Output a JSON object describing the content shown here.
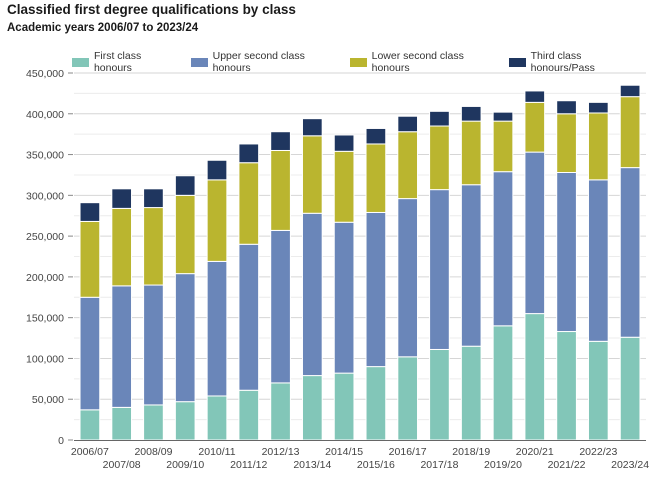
{
  "chart_data": {
    "type": "bar",
    "stacked": true,
    "title": "Classified first degree qualifications by class",
    "subtitle": "Academic years 2006/07 to 2023/24",
    "xlabel": "",
    "ylabel": "",
    "ylim": [
      0,
      450000
    ],
    "yticks": [
      0,
      50000,
      100000,
      150000,
      200000,
      250000,
      300000,
      350000,
      400000,
      450000
    ],
    "ytick_labels": [
      "0",
      "50,000",
      "100,000",
      "150,000",
      "200,000",
      "250,000",
      "300,000",
      "350,000",
      "400,000",
      "450,000"
    ],
    "grid": true,
    "legend_position": "top",
    "categories": [
      "2006/07",
      "2007/08",
      "2008/09",
      "2009/10",
      "2010/11",
      "2011/12",
      "2012/13",
      "2013/14",
      "2014/15",
      "2015/16",
      "2016/17",
      "2017/18",
      "2018/19",
      "2019/20",
      "2020/21",
      "2021/22",
      "2022/23",
      "2023/24"
    ],
    "series": [
      {
        "name": "First class honours",
        "color": "#82c6b8",
        "values": [
          37000,
          40000,
          43000,
          47000,
          54000,
          61000,
          70000,
          79000,
          82000,
          90000,
          102000,
          111000,
          115000,
          140000,
          155000,
          133000,
          121000,
          126000
        ]
      },
      {
        "name": "Upper second class honours",
        "color": "#6a86b9",
        "values": [
          138000,
          149000,
          147000,
          157000,
          165000,
          179000,
          187000,
          199000,
          185000,
          189000,
          194000,
          196000,
          198000,
          189000,
          198000,
          195000,
          198000,
          208000
        ]
      },
      {
        "name": "Lower second class honours",
        "color": "#bab52f",
        "values": [
          93000,
          95000,
          95000,
          96000,
          100000,
          100000,
          98000,
          95000,
          87000,
          84000,
          82000,
          78000,
          78000,
          62000,
          61000,
          72000,
          82000,
          87000
        ]
      },
      {
        "name": "Third class honours/Pass",
        "color": "#1f365f",
        "values": [
          23000,
          24000,
          23000,
          24000,
          24000,
          23000,
          23000,
          21000,
          20000,
          19000,
          19000,
          18000,
          18000,
          11000,
          14000,
          16000,
          13000,
          14000
        ]
      }
    ]
  }
}
